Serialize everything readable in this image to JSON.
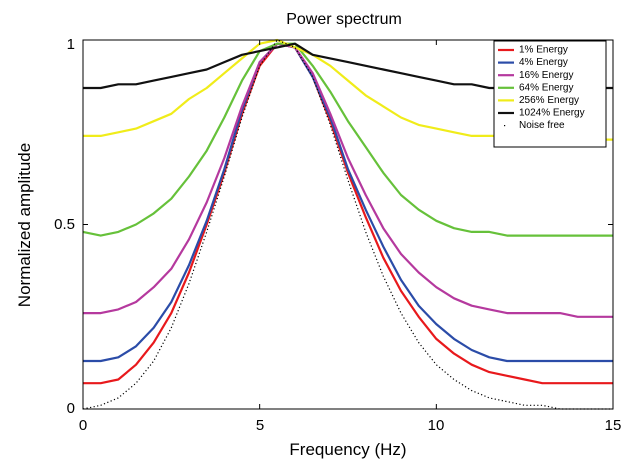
{
  "chart_data": {
    "type": "line",
    "title": "Power spectrum",
    "xlabel": "Frequency (Hz)",
    "ylabel": "Normalized amplitude",
    "xlim": [
      0,
      15
    ],
    "ylim": [
      0,
      1
    ],
    "x_ticks": [
      "0",
      "5",
      "10",
      "15"
    ],
    "y_ticks": [
      "0",
      "0.5",
      "1"
    ],
    "grid": false,
    "legend_position": "top-right",
    "x": [
      0,
      0.5,
      1,
      1.5,
      2,
      2.5,
      3,
      3.5,
      4,
      4.5,
      5,
      5.5,
      6,
      6.5,
      7,
      7.5,
      8,
      8.5,
      9,
      9.5,
      10,
      10.5,
      11,
      11.5,
      12,
      12.5,
      13,
      13.5,
      14,
      14.5,
      15
    ],
    "series": [
      {
        "name": "1% Energy",
        "color": "#e8191c",
        "style": "solid",
        "values": [
          0.07,
          0.07,
          0.08,
          0.12,
          0.18,
          0.26,
          0.37,
          0.5,
          0.64,
          0.8,
          0.93,
          0.99,
          0.98,
          0.9,
          0.78,
          0.64,
          0.52,
          0.41,
          0.32,
          0.25,
          0.19,
          0.15,
          0.12,
          0.1,
          0.09,
          0.08,
          0.07,
          0.07,
          0.07,
          0.07,
          0.07
        ]
      },
      {
        "name": "4% Energy",
        "color": "#2b4ca8",
        "style": "solid",
        "values": [
          0.13,
          0.13,
          0.14,
          0.17,
          0.22,
          0.29,
          0.39,
          0.51,
          0.65,
          0.81,
          0.94,
          0.99,
          0.98,
          0.9,
          0.79,
          0.65,
          0.54,
          0.44,
          0.35,
          0.28,
          0.23,
          0.19,
          0.16,
          0.14,
          0.13,
          0.13,
          0.13,
          0.13,
          0.13,
          0.13,
          0.13
        ]
      },
      {
        "name": "16% Energy",
        "color": "#b5399e",
        "style": "solid",
        "values": [
          0.26,
          0.26,
          0.27,
          0.29,
          0.33,
          0.38,
          0.46,
          0.56,
          0.68,
          0.82,
          0.94,
          0.99,
          0.98,
          0.91,
          0.8,
          0.68,
          0.58,
          0.49,
          0.42,
          0.37,
          0.33,
          0.3,
          0.28,
          0.27,
          0.26,
          0.26,
          0.26,
          0.26,
          0.25,
          0.25,
          0.25
        ]
      },
      {
        "name": "64% Energy",
        "color": "#66c13a",
        "style": "solid",
        "values": [
          0.48,
          0.47,
          0.48,
          0.5,
          0.53,
          0.57,
          0.63,
          0.7,
          0.79,
          0.89,
          0.97,
          0.99,
          0.99,
          0.93,
          0.86,
          0.78,
          0.71,
          0.64,
          0.58,
          0.54,
          0.51,
          0.49,
          0.48,
          0.48,
          0.47,
          0.47,
          0.47,
          0.47,
          0.47,
          0.47,
          0.47
        ]
      },
      {
        "name": "256% Energy",
        "color": "#f0ec1a",
        "style": "solid",
        "values": [
          0.74,
          0.74,
          0.75,
          0.76,
          0.78,
          0.8,
          0.84,
          0.87,
          0.91,
          0.95,
          0.99,
          1.0,
          0.98,
          0.96,
          0.93,
          0.89,
          0.85,
          0.82,
          0.79,
          0.77,
          0.76,
          0.75,
          0.74,
          0.74,
          0.74,
          0.74,
          0.73,
          0.73,
          0.74,
          0.73,
          0.73
        ]
      },
      {
        "name": "1024% Energy",
        "color": "#111111",
        "style": "solid",
        "values": [
          0.87,
          0.87,
          0.88,
          0.88,
          0.89,
          0.9,
          0.91,
          0.92,
          0.94,
          0.96,
          0.97,
          0.98,
          0.99,
          0.96,
          0.95,
          0.94,
          0.93,
          0.92,
          0.91,
          0.9,
          0.89,
          0.88,
          0.88,
          0.87,
          0.87,
          0.88,
          0.87,
          0.87,
          0.87,
          0.87,
          0.87
        ]
      },
      {
        "name": "Noise free",
        "color": "#000000",
        "style": "dotted",
        "values": [
          0.0,
          0.01,
          0.03,
          0.07,
          0.13,
          0.22,
          0.34,
          0.48,
          0.63,
          0.79,
          0.93,
          1.0,
          0.98,
          0.9,
          0.77,
          0.62,
          0.48,
          0.36,
          0.26,
          0.18,
          0.12,
          0.08,
          0.05,
          0.03,
          0.02,
          0.01,
          0.01,
          0.0,
          0.0,
          0.0,
          0.0
        ]
      }
    ]
  }
}
